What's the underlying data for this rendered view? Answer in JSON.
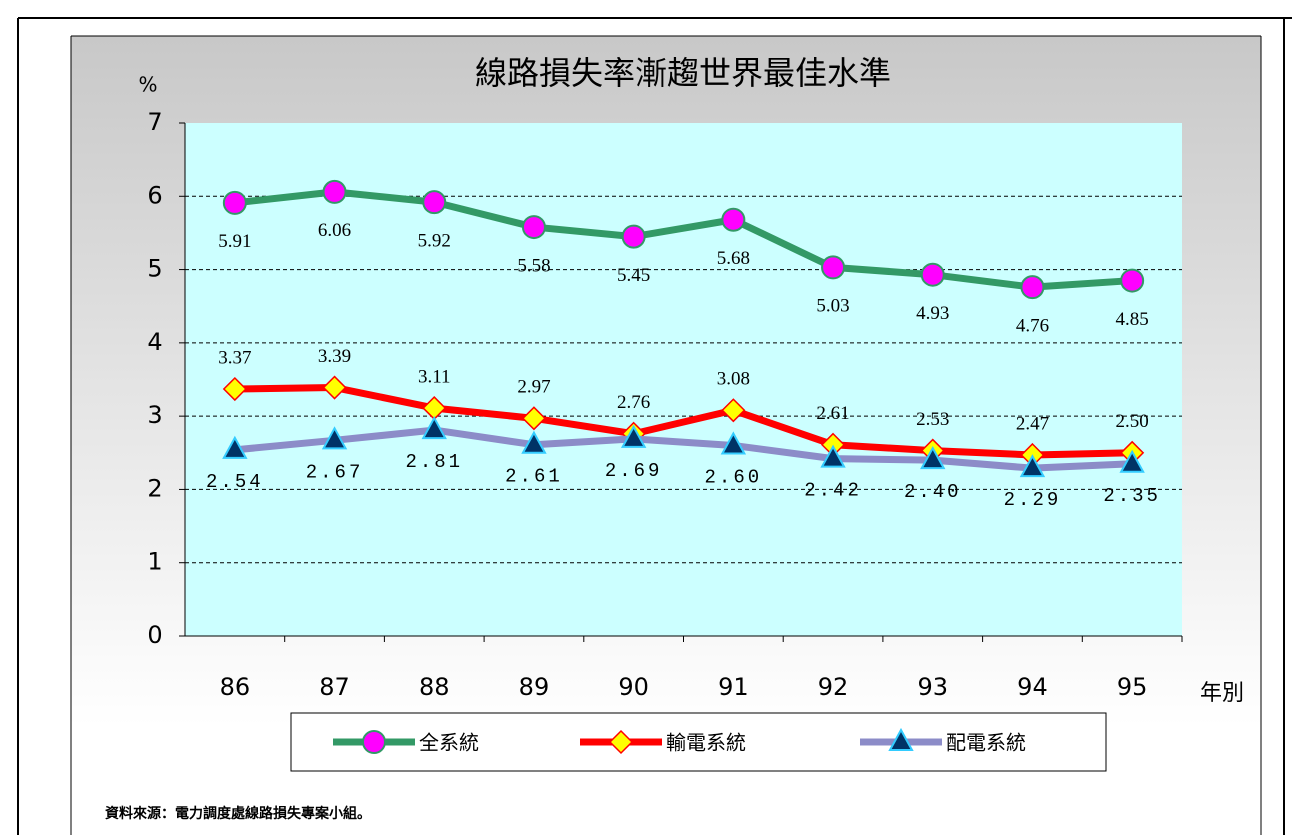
{
  "chart_data": {
    "type": "line",
    "title": "線路損失率漸趨世界最佳水準",
    "y_label": "%",
    "x_label": "年別",
    "source": "資料來源：電力調度處線路損失專案小組。",
    "categories": [
      "86",
      "87",
      "88",
      "89",
      "90",
      "91",
      "92",
      "93",
      "94",
      "95"
    ],
    "ylim": [
      0,
      7
    ],
    "yticks": [
      0,
      1,
      2,
      3,
      4,
      5,
      6,
      7
    ],
    "grid": true,
    "series": [
      {
        "name": "全系統",
        "color": "#339966",
        "marker": "circle",
        "marker_color": "#ff00ff",
        "values": [
          5.91,
          6.06,
          5.92,
          5.58,
          5.45,
          5.68,
          5.03,
          4.93,
          4.76,
          4.85
        ]
      },
      {
        "name": "輸電系統",
        "color": "#ff0000",
        "marker": "diamond",
        "marker_color": "#ffff00",
        "values": [
          3.37,
          3.39,
          3.11,
          2.97,
          2.76,
          3.08,
          2.61,
          2.53,
          2.47,
          2.5
        ],
        "value_labels": [
          "3.37",
          "3.39",
          "3.11",
          "2.97",
          "2.76",
          "3.08",
          "2.61",
          "2.53",
          "2.47",
          "2.50"
        ]
      },
      {
        "name": "配電系統",
        "color": "#8c8cc8",
        "marker": "triangle",
        "marker_color": "#003366",
        "values": [
          2.54,
          2.67,
          2.81,
          2.61,
          2.69,
          2.6,
          2.42,
          2.4,
          2.29,
          2.35
        ],
        "value_labels": [
          "2.54",
          "2.67",
          "2.81",
          "2.61",
          "2.69",
          "2.60",
          "2.42",
          "2.40",
          "2.29",
          "2.35"
        ]
      }
    ]
  }
}
